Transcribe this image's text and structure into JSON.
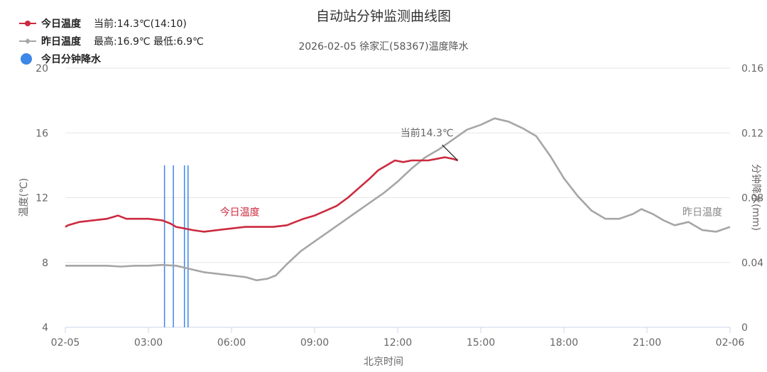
{
  "title": "自动站分钟监测曲线图",
  "subtitle": "2026-02-05 徐家汇(58367)温度降水",
  "legend": {
    "today": {
      "label": "今日温度",
      "stats": "当前:14.3℃(14:10)",
      "color": "#cc2a3f"
    },
    "yesterday": {
      "label": "昨日温度",
      "stats": "最高:16.9℃ 最低:6.9℃",
      "color": "#a6a6a6"
    },
    "rain": {
      "label": "今日分钟降水",
      "color": "#3c87e8"
    }
  },
  "annotations": {
    "current": "当前14.3℃",
    "today_label": "今日温度",
    "yesterday_label": "昨日温度"
  },
  "chart_data": {
    "type": "line",
    "title": "自动站分钟监测曲线图",
    "subtitle": "2026-02-05 徐家汇(58367)温度降水",
    "xlabel": "北京时间",
    "ylabel": "温度(℃)",
    "y2label": "分钟降水(mm)",
    "x_ticks": [
      "02-05",
      "03:00",
      "06:00",
      "09:00",
      "12:00",
      "15:00",
      "18:00",
      "21:00",
      "02-06"
    ],
    "x_tick_hours": [
      0,
      3,
      6,
      9,
      12,
      15,
      18,
      21,
      24
    ],
    "xlim_hours": [
      0,
      24
    ],
    "ylim": [
      4,
      20
    ],
    "y_ticks": [
      4,
      8,
      12,
      16,
      20
    ],
    "y2lim": [
      0,
      0.16
    ],
    "y2_ticks": [
      "0",
      "0.04",
      "0.08",
      "0.12",
      "0.16"
    ],
    "y2_tick_values": [
      0,
      0.04,
      0.08,
      0.12,
      0.16
    ],
    "grid": true,
    "series": [
      {
        "name": "今日温度",
        "color": "#cc2a3f",
        "points": [
          [
            0,
            10.2
          ],
          [
            0.1,
            10.3
          ],
          [
            0.5,
            10.5
          ],
          [
            1.0,
            10.6
          ],
          [
            1.5,
            10.7
          ],
          [
            1.9,
            10.9
          ],
          [
            2.2,
            10.7
          ],
          [
            2.6,
            10.7
          ],
          [
            3.0,
            10.7
          ],
          [
            3.5,
            10.6
          ],
          [
            3.8,
            10.4
          ],
          [
            4.0,
            10.2
          ],
          [
            4.3,
            10.1
          ],
          [
            4.6,
            10.0
          ],
          [
            5.0,
            9.9
          ],
          [
            5.5,
            10.0
          ],
          [
            6.0,
            10.1
          ],
          [
            6.5,
            10.2
          ],
          [
            7.0,
            10.2
          ],
          [
            7.5,
            10.2
          ],
          [
            8.0,
            10.3
          ],
          [
            8.3,
            10.5
          ],
          [
            8.6,
            10.7
          ],
          [
            9.0,
            10.9
          ],
          [
            9.4,
            11.2
          ],
          [
            9.8,
            11.5
          ],
          [
            10.2,
            12.0
          ],
          [
            10.6,
            12.6
          ],
          [
            11.0,
            13.2
          ],
          [
            11.3,
            13.7
          ],
          [
            11.6,
            14.0
          ],
          [
            11.9,
            14.3
          ],
          [
            12.2,
            14.2
          ],
          [
            12.5,
            14.3
          ],
          [
            12.8,
            14.3
          ],
          [
            13.1,
            14.3
          ],
          [
            13.4,
            14.4
          ],
          [
            13.7,
            14.5
          ],
          [
            14.0,
            14.4
          ],
          [
            14.17,
            14.3
          ]
        ]
      },
      {
        "name": "昨日温度",
        "color": "#a6a6a6",
        "points": [
          [
            0,
            7.8
          ],
          [
            0.5,
            7.8
          ],
          [
            1.0,
            7.8
          ],
          [
            1.5,
            7.8
          ],
          [
            2.0,
            7.75
          ],
          [
            2.5,
            7.8
          ],
          [
            3.0,
            7.8
          ],
          [
            3.5,
            7.85
          ],
          [
            4.0,
            7.8
          ],
          [
            4.5,
            7.6
          ],
          [
            5.0,
            7.4
          ],
          [
            5.5,
            7.3
          ],
          [
            6.0,
            7.2
          ],
          [
            6.5,
            7.1
          ],
          [
            6.9,
            6.9
          ],
          [
            7.3,
            7.0
          ],
          [
            7.6,
            7.2
          ],
          [
            8.0,
            7.9
          ],
          [
            8.5,
            8.7
          ],
          [
            9.0,
            9.3
          ],
          [
            9.5,
            9.9
          ],
          [
            10.0,
            10.5
          ],
          [
            10.5,
            11.1
          ],
          [
            11.0,
            11.7
          ],
          [
            11.5,
            12.3
          ],
          [
            12.0,
            13.0
          ],
          [
            12.5,
            13.8
          ],
          [
            13.0,
            14.5
          ],
          [
            13.5,
            15.0
          ],
          [
            14.0,
            15.6
          ],
          [
            14.5,
            16.2
          ],
          [
            15.0,
            16.5
          ],
          [
            15.5,
            16.9
          ],
          [
            16.0,
            16.7
          ],
          [
            16.5,
            16.3
          ],
          [
            17.0,
            15.8
          ],
          [
            17.5,
            14.6
          ],
          [
            18.0,
            13.2
          ],
          [
            18.5,
            12.1
          ],
          [
            19.0,
            11.2
          ],
          [
            19.5,
            10.7
          ],
          [
            20.0,
            10.7
          ],
          [
            20.5,
            11.0
          ],
          [
            20.8,
            11.3
          ],
          [
            21.2,
            11.0
          ],
          [
            21.6,
            10.6
          ],
          [
            22.0,
            10.3
          ],
          [
            22.5,
            10.5
          ],
          [
            23.0,
            10.0
          ],
          [
            23.5,
            9.9
          ],
          [
            24.0,
            10.2
          ]
        ]
      }
    ],
    "rain_minutes": [
      {
        "time_hours": 3.58,
        "value": 0.1
      },
      {
        "time_hours": 3.9,
        "value": 0.1
      },
      {
        "time_hours": 4.3,
        "value": 0.1
      },
      {
        "time_hours": 4.43,
        "value": 0.1
      }
    ],
    "current": {
      "time_hours": 14.17,
      "value": 14.3
    }
  }
}
